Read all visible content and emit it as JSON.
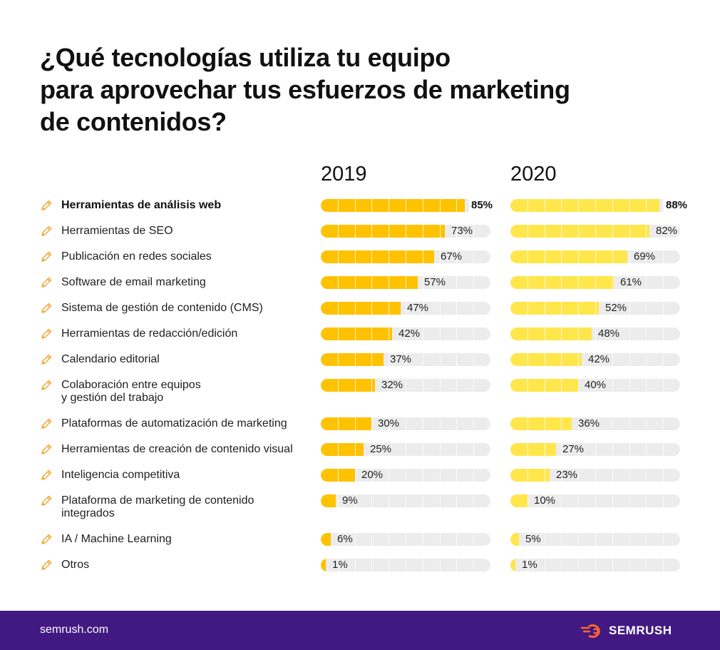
{
  "title_lines": [
    "¿Qué tecnologías utiliza tu equipo",
    "para aprovechar tus esfuerzos de marketing",
    "de contenidos?"
  ],
  "footer": {
    "url": "semrush.com",
    "brand": "SEMRUSH"
  },
  "colors": {
    "bar_2019": "#fec200",
    "bar_2020": "#ffe64b",
    "track": "#ececec",
    "footer_bg": "#421983",
    "logo_orange": "#ff642d",
    "pencil": "#f2a93b"
  },
  "icons": {
    "row": "pencil-icon",
    "brand": "semrush-logo-icon"
  },
  "chart_data": {
    "type": "bar",
    "orientation": "horizontal",
    "series": [
      {
        "name": "2019",
        "values": [
          85,
          73,
          67,
          57,
          47,
          42,
          37,
          32,
          30,
          25,
          20,
          9,
          6,
          1
        ]
      },
      {
        "name": "2020",
        "values": [
          88,
          82,
          69,
          61,
          52,
          48,
          42,
          40,
          36,
          27,
          23,
          10,
          5,
          1
        ]
      }
    ],
    "categories": [
      [
        "Herramientas de análisis web"
      ],
      [
        "Herramientas de SEO"
      ],
      [
        "Publicación en redes sociales"
      ],
      [
        "Software de email marketing"
      ],
      [
        "Sistema de gestión de contenido (CMS)"
      ],
      [
        "Herramientas de redacción/edición"
      ],
      [
        "Calendario editorial"
      ],
      [
        "Colaboración entre equipos",
        "y gestión del trabajo"
      ],
      [
        "Plataformas de automatización de marketing"
      ],
      [
        "Herramientas de creación de contenido visual"
      ],
      [
        "Inteligencia competitiva"
      ],
      [
        "Plataforma de marketing de contenido",
        "integrados"
      ],
      [
        "IA / Machine Learning"
      ],
      [
        "Otros"
      ]
    ],
    "value_labels_2019": [
      "85%",
      "73%",
      "67%",
      "57%",
      "47%",
      "42%",
      "37%",
      "32%",
      "30%",
      "25%",
      "20%",
      "9%",
      "6%",
      "1%"
    ],
    "value_labels_2020": [
      "88%",
      "82%",
      "69%",
      "61%",
      "52%",
      "48%",
      "42%",
      "40%",
      "36%",
      "27%",
      "23%",
      "10%",
      "5%",
      "1%"
    ],
    "xlim": [
      0,
      100
    ],
    "unit": "%",
    "highlighted_category_index": 0,
    "grid": false,
    "legend": "none"
  }
}
